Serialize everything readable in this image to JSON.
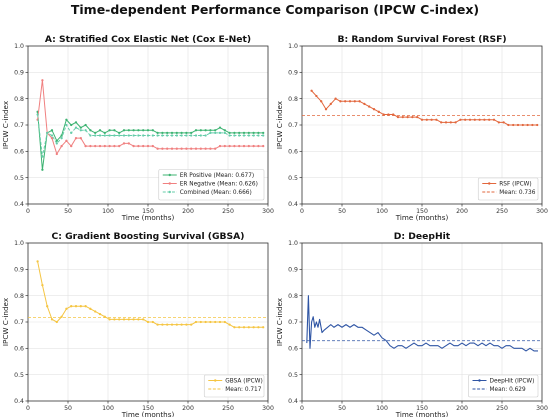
{
  "suptitle": "Time-dependent Performance Comparison (IPCW C-index)",
  "chart_data": [
    {
      "type": "line",
      "title": "A: Stratified Cox Elastic Net (Cox E-Net)",
      "xlabel": "Time (months)",
      "ylabel": "IPCW C-index",
      "xlim": [
        0,
        300
      ],
      "ylim": [
        0.4,
        1.0
      ],
      "xticks": [
        0,
        50,
        100,
        150,
        200,
        250,
        300
      ],
      "yticks": [
        0.4,
        0.5,
        0.6,
        0.7,
        0.8,
        0.9,
        1.0
      ],
      "grid": true,
      "legend_position": "lower-right",
      "series": [
        {
          "name": "ER Positive (Mean: 0.677)",
          "color": "#3cb371",
          "style": "solid-marker",
          "x": [
            12,
            18,
            24,
            30,
            36,
            42,
            48,
            54,
            60,
            66,
            72,
            78,
            84,
            90,
            96,
            102,
            108,
            114,
            120,
            126,
            132,
            138,
            144,
            150,
            156,
            162,
            168,
            174,
            180,
            186,
            192,
            198,
            204,
            210,
            216,
            222,
            228,
            234,
            240,
            246,
            252,
            258,
            264,
            270,
            276,
            282,
            288,
            294
          ],
          "y": [
            0.75,
            0.53,
            0.67,
            0.68,
            0.64,
            0.66,
            0.72,
            0.7,
            0.71,
            0.69,
            0.7,
            0.68,
            0.67,
            0.68,
            0.67,
            0.68,
            0.68,
            0.67,
            0.68,
            0.68,
            0.68,
            0.68,
            0.68,
            0.68,
            0.68,
            0.67,
            0.67,
            0.67,
            0.67,
            0.67,
            0.67,
            0.67,
            0.67,
            0.68,
            0.68,
            0.68,
            0.68,
            0.68,
            0.69,
            0.68,
            0.67,
            0.67,
            0.67,
            0.67,
            0.67,
            0.67,
            0.67,
            0.67
          ]
        },
        {
          "name": "ER Negative (Mean: 0.626)",
          "color": "#f08080",
          "style": "solid-marker",
          "x": [
            12,
            18,
            24,
            30,
            36,
            42,
            48,
            54,
            60,
            66,
            72,
            78,
            84,
            90,
            96,
            102,
            108,
            114,
            120,
            126,
            132,
            138,
            144,
            150,
            156,
            162,
            168,
            174,
            180,
            186,
            192,
            198,
            204,
            210,
            216,
            222,
            228,
            234,
            240,
            246,
            252,
            258,
            264,
            270,
            276,
            282,
            288,
            294
          ],
          "y": [
            0.72,
            0.87,
            0.67,
            0.65,
            0.59,
            0.62,
            0.64,
            0.62,
            0.65,
            0.65,
            0.62,
            0.62,
            0.62,
            0.62,
            0.62,
            0.62,
            0.62,
            0.62,
            0.63,
            0.63,
            0.62,
            0.62,
            0.62,
            0.62,
            0.62,
            0.61,
            0.61,
            0.61,
            0.61,
            0.61,
            0.61,
            0.61,
            0.61,
            0.61,
            0.61,
            0.61,
            0.61,
            0.61,
            0.62,
            0.62,
            0.62,
            0.62,
            0.62,
            0.62,
            0.62,
            0.62,
            0.62,
            0.62
          ]
        },
        {
          "name": "Combined (Mean: 0.666)",
          "color": "#66cdaa",
          "style": "dashed-marker",
          "x": [
            12,
            18,
            24,
            30,
            36,
            42,
            48,
            54,
            60,
            66,
            72,
            78,
            84,
            90,
            96,
            102,
            108,
            114,
            120,
            126,
            132,
            138,
            144,
            150,
            156,
            162,
            168,
            174,
            180,
            186,
            192,
            198,
            204,
            210,
            216,
            222,
            228,
            234,
            240,
            246,
            252,
            258,
            264,
            270,
            276,
            282,
            288,
            294
          ],
          "y": [
            0.74,
            0.58,
            0.67,
            0.66,
            0.63,
            0.65,
            0.7,
            0.67,
            0.69,
            0.68,
            0.68,
            0.66,
            0.66,
            0.66,
            0.66,
            0.66,
            0.66,
            0.66,
            0.66,
            0.66,
            0.66,
            0.66,
            0.66,
            0.66,
            0.66,
            0.66,
            0.66,
            0.66,
            0.66,
            0.66,
            0.66,
            0.66,
            0.66,
            0.66,
            0.66,
            0.66,
            0.67,
            0.67,
            0.67,
            0.67,
            0.66,
            0.66,
            0.66,
            0.66,
            0.66,
            0.66,
            0.66,
            0.66
          ]
        }
      ]
    },
    {
      "type": "line",
      "title": "B: Random Survival Forest (RSF)",
      "xlabel": "Time (months)",
      "ylabel": "IPCW C-index",
      "xlim": [
        0,
        300
      ],
      "ylim": [
        0.4,
        1.0
      ],
      "xticks": [
        0,
        50,
        100,
        150,
        200,
        250,
        300
      ],
      "yticks": [
        0.4,
        0.5,
        0.6,
        0.7,
        0.8,
        0.9,
        1.0
      ],
      "grid": true,
      "legend_position": "lower-right",
      "series": [
        {
          "name": "RSF (IPCW)",
          "color": "#e2673d",
          "style": "solid-marker",
          "x": [
            12,
            18,
            24,
            30,
            36,
            42,
            48,
            54,
            60,
            66,
            72,
            78,
            84,
            90,
            96,
            102,
            108,
            114,
            120,
            126,
            132,
            138,
            144,
            150,
            156,
            162,
            168,
            174,
            180,
            186,
            192,
            198,
            204,
            210,
            216,
            222,
            228,
            234,
            240,
            246,
            252,
            258,
            264,
            270,
            276,
            282,
            288,
            294
          ],
          "y": [
            0.83,
            0.81,
            0.79,
            0.76,
            0.78,
            0.8,
            0.79,
            0.79,
            0.79,
            0.79,
            0.79,
            0.78,
            0.77,
            0.76,
            0.75,
            0.74,
            0.74,
            0.74,
            0.73,
            0.73,
            0.73,
            0.73,
            0.73,
            0.72,
            0.72,
            0.72,
            0.72,
            0.71,
            0.71,
            0.71,
            0.71,
            0.72,
            0.72,
            0.72,
            0.72,
            0.72,
            0.72,
            0.72,
            0.72,
            0.71,
            0.71,
            0.7,
            0.7,
            0.7,
            0.7,
            0.7,
            0.7,
            0.7
          ]
        },
        {
          "name": "Mean: 0.736",
          "color": "#e2673d",
          "style": "dashed",
          "x": [
            0,
            300
          ],
          "y": [
            0.736,
            0.736
          ]
        }
      ]
    },
    {
      "type": "line",
      "title": "C: Gradient Boosting Survival (GBSA)",
      "xlabel": "Time (months)",
      "ylabel": "IPCW C-index",
      "xlim": [
        0,
        300
      ],
      "ylim": [
        0.4,
        1.0
      ],
      "xticks": [
        0,
        50,
        100,
        150,
        200,
        250,
        300
      ],
      "yticks": [
        0.4,
        0.5,
        0.6,
        0.7,
        0.8,
        0.9,
        1.0
      ],
      "grid": true,
      "legend_position": "lower-right",
      "series": [
        {
          "name": "GBSA (IPCW)",
          "color": "#f5c542",
          "style": "solid-marker",
          "x": [
            12,
            18,
            24,
            30,
            36,
            42,
            48,
            54,
            60,
            66,
            72,
            78,
            84,
            90,
            96,
            102,
            108,
            114,
            120,
            126,
            132,
            138,
            144,
            150,
            156,
            162,
            168,
            174,
            180,
            186,
            192,
            198,
            204,
            210,
            216,
            222,
            228,
            234,
            240,
            246,
            252,
            258,
            264,
            270,
            276,
            282,
            288,
            294
          ],
          "y": [
            0.93,
            0.84,
            0.76,
            0.71,
            0.7,
            0.72,
            0.75,
            0.76,
            0.76,
            0.76,
            0.76,
            0.75,
            0.74,
            0.73,
            0.72,
            0.71,
            0.71,
            0.71,
            0.71,
            0.71,
            0.71,
            0.71,
            0.71,
            0.7,
            0.7,
            0.69,
            0.69,
            0.69,
            0.69,
            0.69,
            0.69,
            0.69,
            0.69,
            0.7,
            0.7,
            0.7,
            0.7,
            0.7,
            0.7,
            0.7,
            0.69,
            0.68,
            0.68,
            0.68,
            0.68,
            0.68,
            0.68,
            0.68
          ]
        },
        {
          "name": "Mean: 0.717",
          "color": "#f5c542",
          "style": "dashed",
          "x": [
            0,
            300
          ],
          "y": [
            0.717,
            0.717
          ]
        }
      ]
    },
    {
      "type": "line",
      "title": "D: DeepHit",
      "xlabel": "Time (months)",
      "ylabel": "IPCW C-index",
      "xlim": [
        0,
        300
      ],
      "ylim": [
        0.4,
        1.0
      ],
      "xticks": [
        0,
        50,
        100,
        150,
        200,
        250,
        300
      ],
      "yticks": [
        0.4,
        0.5,
        0.6,
        0.7,
        0.8,
        0.9,
        1.0
      ],
      "grid": true,
      "legend_position": "lower-right",
      "series": [
        {
          "name": "DeepHit (IPCW)",
          "color": "#2f55a4",
          "style": "solid",
          "x": [
            6,
            8,
            10,
            12,
            14,
            16,
            18,
            20,
            22,
            25,
            28,
            32,
            36,
            40,
            45,
            50,
            55,
            60,
            65,
            70,
            75,
            80,
            85,
            90,
            95,
            100,
            105,
            110,
            115,
            120,
            125,
            130,
            135,
            140,
            145,
            150,
            155,
            160,
            165,
            170,
            175,
            180,
            185,
            190,
            195,
            200,
            205,
            210,
            215,
            220,
            225,
            230,
            235,
            240,
            245,
            250,
            255,
            260,
            265,
            270,
            275,
            280,
            285,
            290,
            295
          ],
          "y": [
            0.62,
            0.8,
            0.6,
            0.7,
            0.72,
            0.68,
            0.7,
            0.68,
            0.71,
            0.66,
            0.67,
            0.68,
            0.69,
            0.68,
            0.69,
            0.68,
            0.69,
            0.68,
            0.69,
            0.68,
            0.68,
            0.67,
            0.66,
            0.65,
            0.66,
            0.64,
            0.63,
            0.61,
            0.6,
            0.61,
            0.61,
            0.6,
            0.61,
            0.62,
            0.61,
            0.61,
            0.62,
            0.61,
            0.61,
            0.61,
            0.6,
            0.61,
            0.62,
            0.61,
            0.61,
            0.62,
            0.61,
            0.62,
            0.62,
            0.61,
            0.62,
            0.61,
            0.62,
            0.61,
            0.61,
            0.6,
            0.61,
            0.61,
            0.6,
            0.6,
            0.6,
            0.59,
            0.6,
            0.59,
            0.59
          ]
        },
        {
          "name": "Mean: 0.629",
          "color": "#2f55a4",
          "style": "dashed",
          "x": [
            0,
            300
          ],
          "y": [
            0.629,
            0.629
          ]
        }
      ]
    }
  ]
}
